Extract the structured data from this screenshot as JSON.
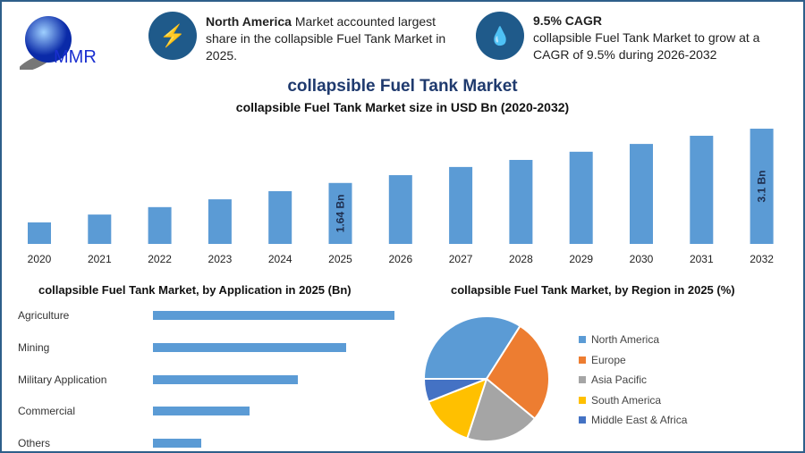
{
  "logo": {
    "text": "MMR"
  },
  "info1": {
    "bold": "North America",
    "text": " Market accounted largest share in the collapsible Fuel Tank Market in 2025.",
    "icon": "lightning-icon"
  },
  "info2": {
    "bold": "9.5% CAGR",
    "text": "collapsible Fuel Tank Market to grow at a CAGR of 9.5% during 2026-2032",
    "icon": "flame-drop-icon"
  },
  "title": "collapsible Fuel Tank Market",
  "chart_data": [
    {
      "type": "bar",
      "title": "collapsible Fuel Tank Market size in USD Bn (2020-2032)",
      "categories": [
        "2020",
        "2021",
        "2022",
        "2023",
        "2024",
        "2025",
        "2026",
        "2027",
        "2028",
        "2029",
        "2030",
        "2031",
        "2032"
      ],
      "values": [
        0.58,
        0.79,
        0.99,
        1.2,
        1.42,
        1.64,
        1.85,
        2.07,
        2.26,
        2.48,
        2.69,
        2.91,
        3.1
      ],
      "data_labels": {
        "2025": "1.64 Bn",
        "2032": "3.1 Bn"
      },
      "color": "#5b9bd5",
      "ylim": [
        0,
        3.2
      ]
    },
    {
      "type": "bar",
      "orientation": "horizontal",
      "title": "collapsible Fuel Tank Market, by Application in 2025 (Bn)",
      "categories": [
        "Agriculture",
        "Mining",
        "Military Application",
        "Commercial",
        "Others"
      ],
      "values": [
        0.5,
        0.4,
        0.3,
        0.2,
        0.1
      ],
      "color": "#5b9bd5"
    },
    {
      "type": "pie",
      "title": "collapsible Fuel Tank Market, by Region in 2025 (%)",
      "categories": [
        "North America",
        "Europe",
        "Asia Pacific",
        "South America",
        "Middle East & Africa"
      ],
      "values": [
        34,
        27,
        19,
        14,
        6
      ],
      "colors": [
        "#5b9bd5",
        "#ed7d31",
        "#a5a5a5",
        "#ffc000",
        "#4472c4"
      ],
      "legend": "right"
    }
  ]
}
